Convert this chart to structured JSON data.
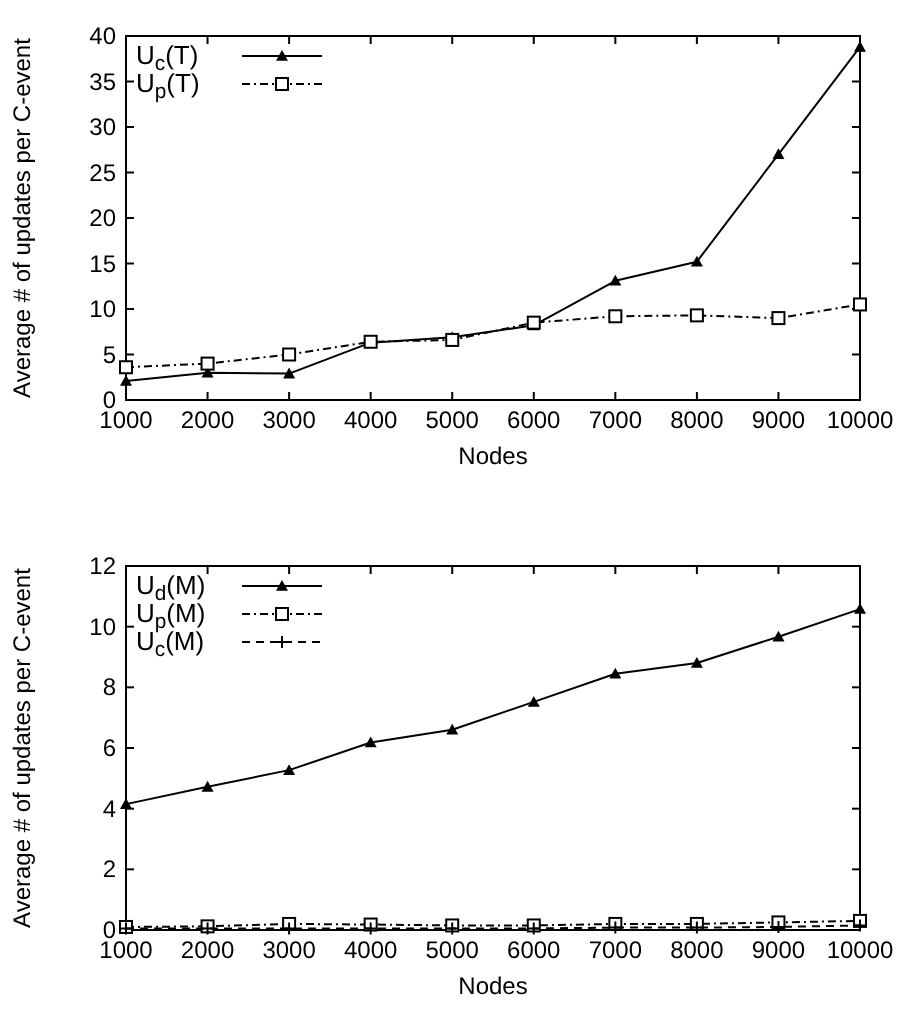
{
  "chart_data": [
    {
      "type": "line",
      "xlabel": "Nodes",
      "ylabel": "Average # of updates per C-event",
      "x": [
        1000,
        2000,
        3000,
        4000,
        5000,
        6000,
        7000,
        8000,
        9000,
        10000
      ],
      "xlim": [
        1000,
        10000
      ],
      "xticks": [
        1000,
        2000,
        3000,
        4000,
        5000,
        6000,
        7000,
        8000,
        9000,
        10000
      ],
      "ylim": [
        0,
        40
      ],
      "yticks": [
        0,
        5,
        10,
        15,
        20,
        25,
        30,
        35,
        40
      ],
      "grid": false,
      "legend": "top left",
      "series": [
        {
          "name": "U$_{c}$(T)",
          "color": "#000000",
          "marker": "triangle",
          "line_style": "solid",
          "values": [
            2.1,
            3.0,
            2.9,
            6.3,
            6.9,
            8.2,
            13.1,
            15.2,
            27.0,
            38.8
          ]
        },
        {
          "name": "U$_{p}$(T)",
          "color": "#000000",
          "marker": "square",
          "line_style": "dotted",
          "values": [
            3.6,
            4.0,
            5.0,
            6.4,
            6.6,
            8.5,
            9.2,
            9.3,
            9.0,
            10.5
          ]
        }
      ]
    },
    {
      "type": "line",
      "xlabel": "Nodes",
      "ylabel": "Average # of updates per C-event",
      "x": [
        1000,
        2000,
        3000,
        4000,
        5000,
        6000,
        7000,
        8000,
        9000,
        10000
      ],
      "xlim": [
        1000,
        10000
      ],
      "xticks": [
        1000,
        2000,
        3000,
        4000,
        5000,
        6000,
        7000,
        8000,
        9000,
        10000
      ],
      "ylim": [
        0,
        12
      ],
      "yticks": [
        0,
        2,
        4,
        6,
        8,
        10,
        12
      ],
      "grid": false,
      "legend": "top left",
      "series": [
        {
          "name": "U$_{d}$(M)",
          "color": "#000000",
          "marker": "triangle",
          "line_style": "solid",
          "values": [
            4.15,
            4.72,
            5.27,
            6.18,
            6.6,
            7.52,
            8.45,
            8.8,
            9.67,
            10.58
          ]
        },
        {
          "name": "U$_{p}$(M)",
          "color": "#000000",
          "marker": "square",
          "line_style": "dotted",
          "values": [
            0.1,
            0.12,
            0.2,
            0.18,
            0.15,
            0.15,
            0.2,
            0.2,
            0.25,
            0.3
          ]
        },
        {
          "name": "U$_{c}$(M)",
          "color": "#000000",
          "marker": "cross",
          "line_style": "dashed",
          "values": [
            0.05,
            0.05,
            0.05,
            0.05,
            0.05,
            0.05,
            0.08,
            0.08,
            0.1,
            0.15
          ]
        }
      ]
    }
  ]
}
